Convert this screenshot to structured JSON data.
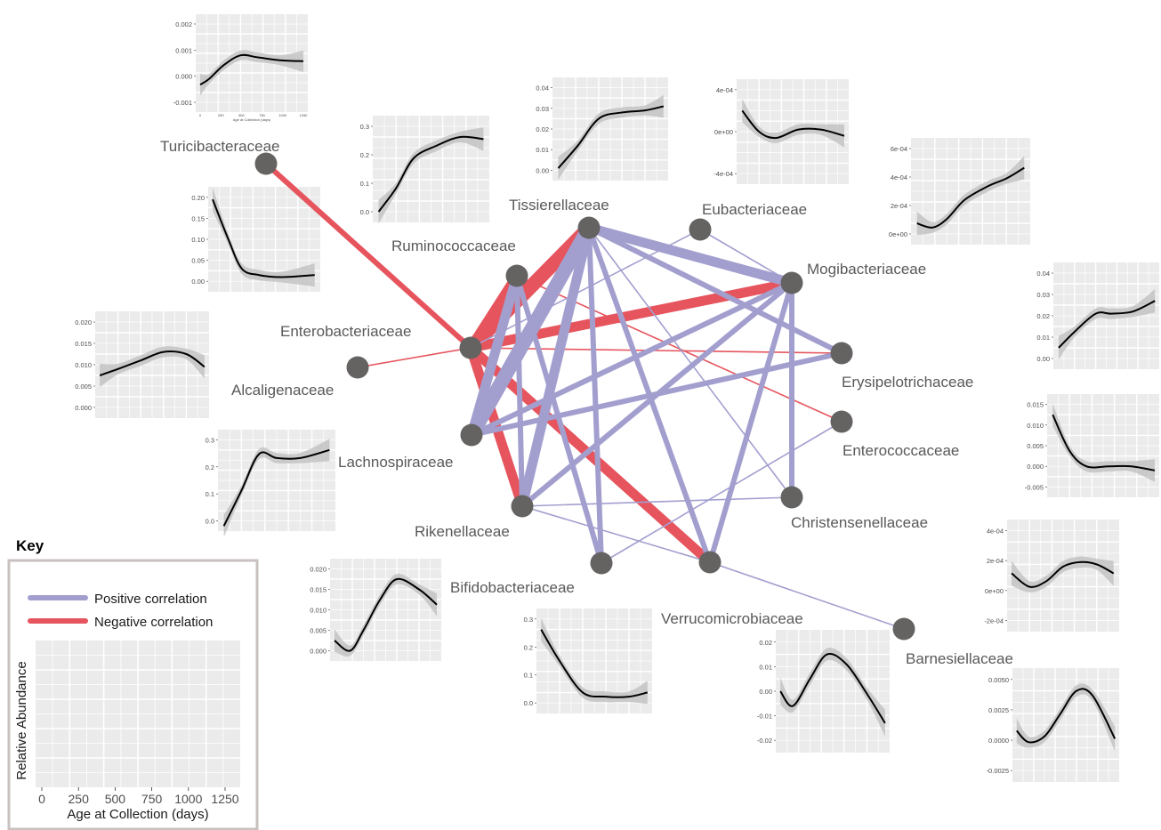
{
  "colors": {
    "positive": "#a29fcf",
    "negative": "#e6545d",
    "node": "#656262",
    "panel_bg": "#ebebeb",
    "curve": "#000000",
    "ribbon": "#bdbdbd",
    "key_border": "#c9c1bf"
  },
  "nodes": [
    {
      "id": "turicibacteraceae",
      "label": "Turicibacteraceae"
    },
    {
      "id": "ruminococcaceae",
      "label": "Ruminococcaceae"
    },
    {
      "id": "tissierellaceae",
      "label": "Tissierellaceae"
    },
    {
      "id": "eubacteriaceae",
      "label": "Eubacteriaceae"
    },
    {
      "id": "mogibacteriaceae",
      "label": "Mogibacteriaceae"
    },
    {
      "id": "enterobacteriaceae",
      "label": "Enterobacteriaceae"
    },
    {
      "id": "alcaligenaceae",
      "label": "Alcaligenaceae"
    },
    {
      "id": "erysipelotrichaceae",
      "label": "Erysipelotrichaceae"
    },
    {
      "id": "lachnospiraceae",
      "label": "Lachnospiraceae"
    },
    {
      "id": "enterococcaceae",
      "label": "Enterococcaceae"
    },
    {
      "id": "rikenellaceae",
      "label": "Rikenellaceae"
    },
    {
      "id": "christensenellaceae",
      "label": "Christensenellaceae"
    },
    {
      "id": "bifidobacteriaceae",
      "label": "Bifidobacteriaceae"
    },
    {
      "id": "verrucomicrobiaceae",
      "label": "Verrucomicrobiaceae"
    },
    {
      "id": "barnesiellaceae",
      "label": "Barnesiellaceae"
    }
  ],
  "edges": [
    {
      "from": "turicibacteraceae",
      "to": "enterobacteriaceae",
      "sign": "negative",
      "weight": 3
    },
    {
      "from": "enterobacteriaceae",
      "to": "tissierellaceae",
      "sign": "negative",
      "weight": 7
    },
    {
      "from": "enterobacteriaceae",
      "to": "ruminococcaceae",
      "sign": "negative",
      "weight": 5
    },
    {
      "from": "enterobacteriaceae",
      "to": "mogibacteriaceae",
      "sign": "negative",
      "weight": 5
    },
    {
      "from": "enterobacteriaceae",
      "to": "erysipelotrichaceae",
      "sign": "negative",
      "weight": 1
    },
    {
      "from": "enterobacteriaceae",
      "to": "alcaligenaceae",
      "sign": "negative",
      "weight": 1
    },
    {
      "from": "enterobacteriaceae",
      "to": "rikenellaceae",
      "sign": "negative",
      "weight": 5
    },
    {
      "from": "enterobacteriaceae",
      "to": "verrucomicrobiaceae",
      "sign": "negative",
      "weight": 5
    },
    {
      "from": "ruminococcaceae",
      "to": "enterococcaceae",
      "sign": "negative",
      "weight": 1
    },
    {
      "from": "tissierellaceae",
      "to": "lachnospiraceae",
      "sign": "positive",
      "weight": 7
    },
    {
      "from": "ruminococcaceae",
      "to": "lachnospiraceae",
      "sign": "positive",
      "weight": 5
    },
    {
      "from": "tissierellaceae",
      "to": "rikenellaceae",
      "sign": "positive",
      "weight": 5
    },
    {
      "from": "ruminococcaceae",
      "to": "rikenellaceae",
      "sign": "positive",
      "weight": 3
    },
    {
      "from": "tissierellaceae",
      "to": "mogibacteriaceae",
      "sign": "positive",
      "weight": 5
    },
    {
      "from": "tissierellaceae",
      "to": "erysipelotrichaceae",
      "sign": "positive",
      "weight": 3
    },
    {
      "from": "tissierellaceae",
      "to": "christensenellaceae",
      "sign": "positive",
      "weight": 1
    },
    {
      "from": "tissierellaceae",
      "to": "bifidobacteriaceae",
      "sign": "positive",
      "weight": 3
    },
    {
      "from": "tissierellaceae",
      "to": "verrucomicrobiaceae",
      "sign": "positive",
      "weight": 3
    },
    {
      "from": "ruminococcaceae",
      "to": "bifidobacteriaceae",
      "sign": "positive",
      "weight": 3
    },
    {
      "from": "enterobacteriaceae",
      "to": "eubacteriaceae",
      "sign": "positive",
      "weight": 1
    },
    {
      "from": "eubacteriaceae",
      "to": "mogibacteriaceae",
      "sign": "positive",
      "weight": 1
    },
    {
      "from": "lachnospiraceae",
      "to": "mogibacteriaceae",
      "sign": "positive",
      "weight": 3
    },
    {
      "from": "lachnospiraceae",
      "to": "erysipelotrichaceae",
      "sign": "positive",
      "weight": 3
    },
    {
      "from": "rikenellaceae",
      "to": "mogibacteriaceae",
      "sign": "positive",
      "weight": 3
    },
    {
      "from": "mogibacteriaceae",
      "to": "christensenellaceae",
      "sign": "positive",
      "weight": 3
    },
    {
      "from": "mogibacteriaceae",
      "to": "verrucomicrobiaceae",
      "sign": "positive",
      "weight": 3
    },
    {
      "from": "rikenellaceae",
      "to": "christensenellaceae",
      "sign": "positive",
      "weight": 1
    },
    {
      "from": "rikenellaceae",
      "to": "verrucomicrobiaceae",
      "sign": "positive",
      "weight": 1
    },
    {
      "from": "bifidobacteriaceae",
      "to": "enterococcaceae",
      "sign": "positive",
      "weight": 1
    },
    {
      "from": "verrucomicrobiaceae",
      "to": "barnesiellaceae",
      "sign": "positive",
      "weight": 1
    }
  ],
  "panels": [
    {
      "id": "turicibacteraceae",
      "yticks": [
        "0.002",
        "0.001",
        "0.000",
        "-0.001"
      ],
      "xticks": [
        "0",
        "250",
        "500",
        "750",
        "1000",
        "1250"
      ],
      "xlabel": "Age at Collection (days)"
    },
    {
      "id": "ruminococcaceae",
      "yticks": [
        "0.3",
        "0.2",
        "0.1",
        "0.0"
      ]
    },
    {
      "id": "tissierellaceae",
      "yticks": [
        "0.04",
        "0.03",
        "0.02",
        "0.01",
        "0.00"
      ]
    },
    {
      "id": "eubacteriaceae",
      "yticks": [
        "4e-04",
        "0e+00",
        "-4e-04"
      ]
    },
    {
      "id": "mogibacteriaceae",
      "yticks": [
        "6e-04",
        "4e-04",
        "2e-04",
        "0e+00"
      ]
    },
    {
      "id": "enterobacteriaceae",
      "yticks": [
        "0.20",
        "0.15",
        "0.10",
        "0.05",
        "0.00"
      ]
    },
    {
      "id": "alcaligenaceae",
      "yticks": [
        "0.020",
        "0.015",
        "0.010",
        "0.005",
        "0.000"
      ]
    },
    {
      "id": "erysipelotrichaceae",
      "yticks": [
        "0.04",
        "0.03",
        "0.02",
        "0.01",
        "0.00"
      ]
    },
    {
      "id": "lachnospiraceae",
      "yticks": [
        "0.3",
        "0.2",
        "0.1",
        "0.0"
      ]
    },
    {
      "id": "enterococcaceae",
      "yticks": [
        "0.015",
        "0.010",
        "0.005",
        "0.000",
        "-0.005"
      ]
    },
    {
      "id": "christensenellaceae",
      "yticks": [
        "4e-04",
        "2e-04",
        "0e+00",
        "-2e-04"
      ]
    },
    {
      "id": "rikenellaceae",
      "yticks": [
        "0.020",
        "0.015",
        "0.010",
        "0.005",
        "0.000"
      ]
    },
    {
      "id": "bifidobacteriaceae",
      "yticks": [
        "0.3",
        "0.2",
        "0.1",
        "0.0"
      ]
    },
    {
      "id": "verrucomicrobiaceae",
      "yticks": [
        "0.02",
        "0.01",
        "0.00",
        "-0.01",
        "-0.02"
      ]
    },
    {
      "id": "barnesiellaceae",
      "yticks": [
        "0.0050",
        "0.0025",
        "0.0000",
        "-0.0025"
      ]
    }
  ],
  "key": {
    "title": "Key",
    "positive_label": "Positive correlation",
    "negative_label": "Negative correlation",
    "ylabel": "Relative Abundance",
    "xlabel": "Age at Collection (days)",
    "xticks": [
      "0",
      "250",
      "500",
      "750",
      "1000",
      "1250"
    ]
  }
}
